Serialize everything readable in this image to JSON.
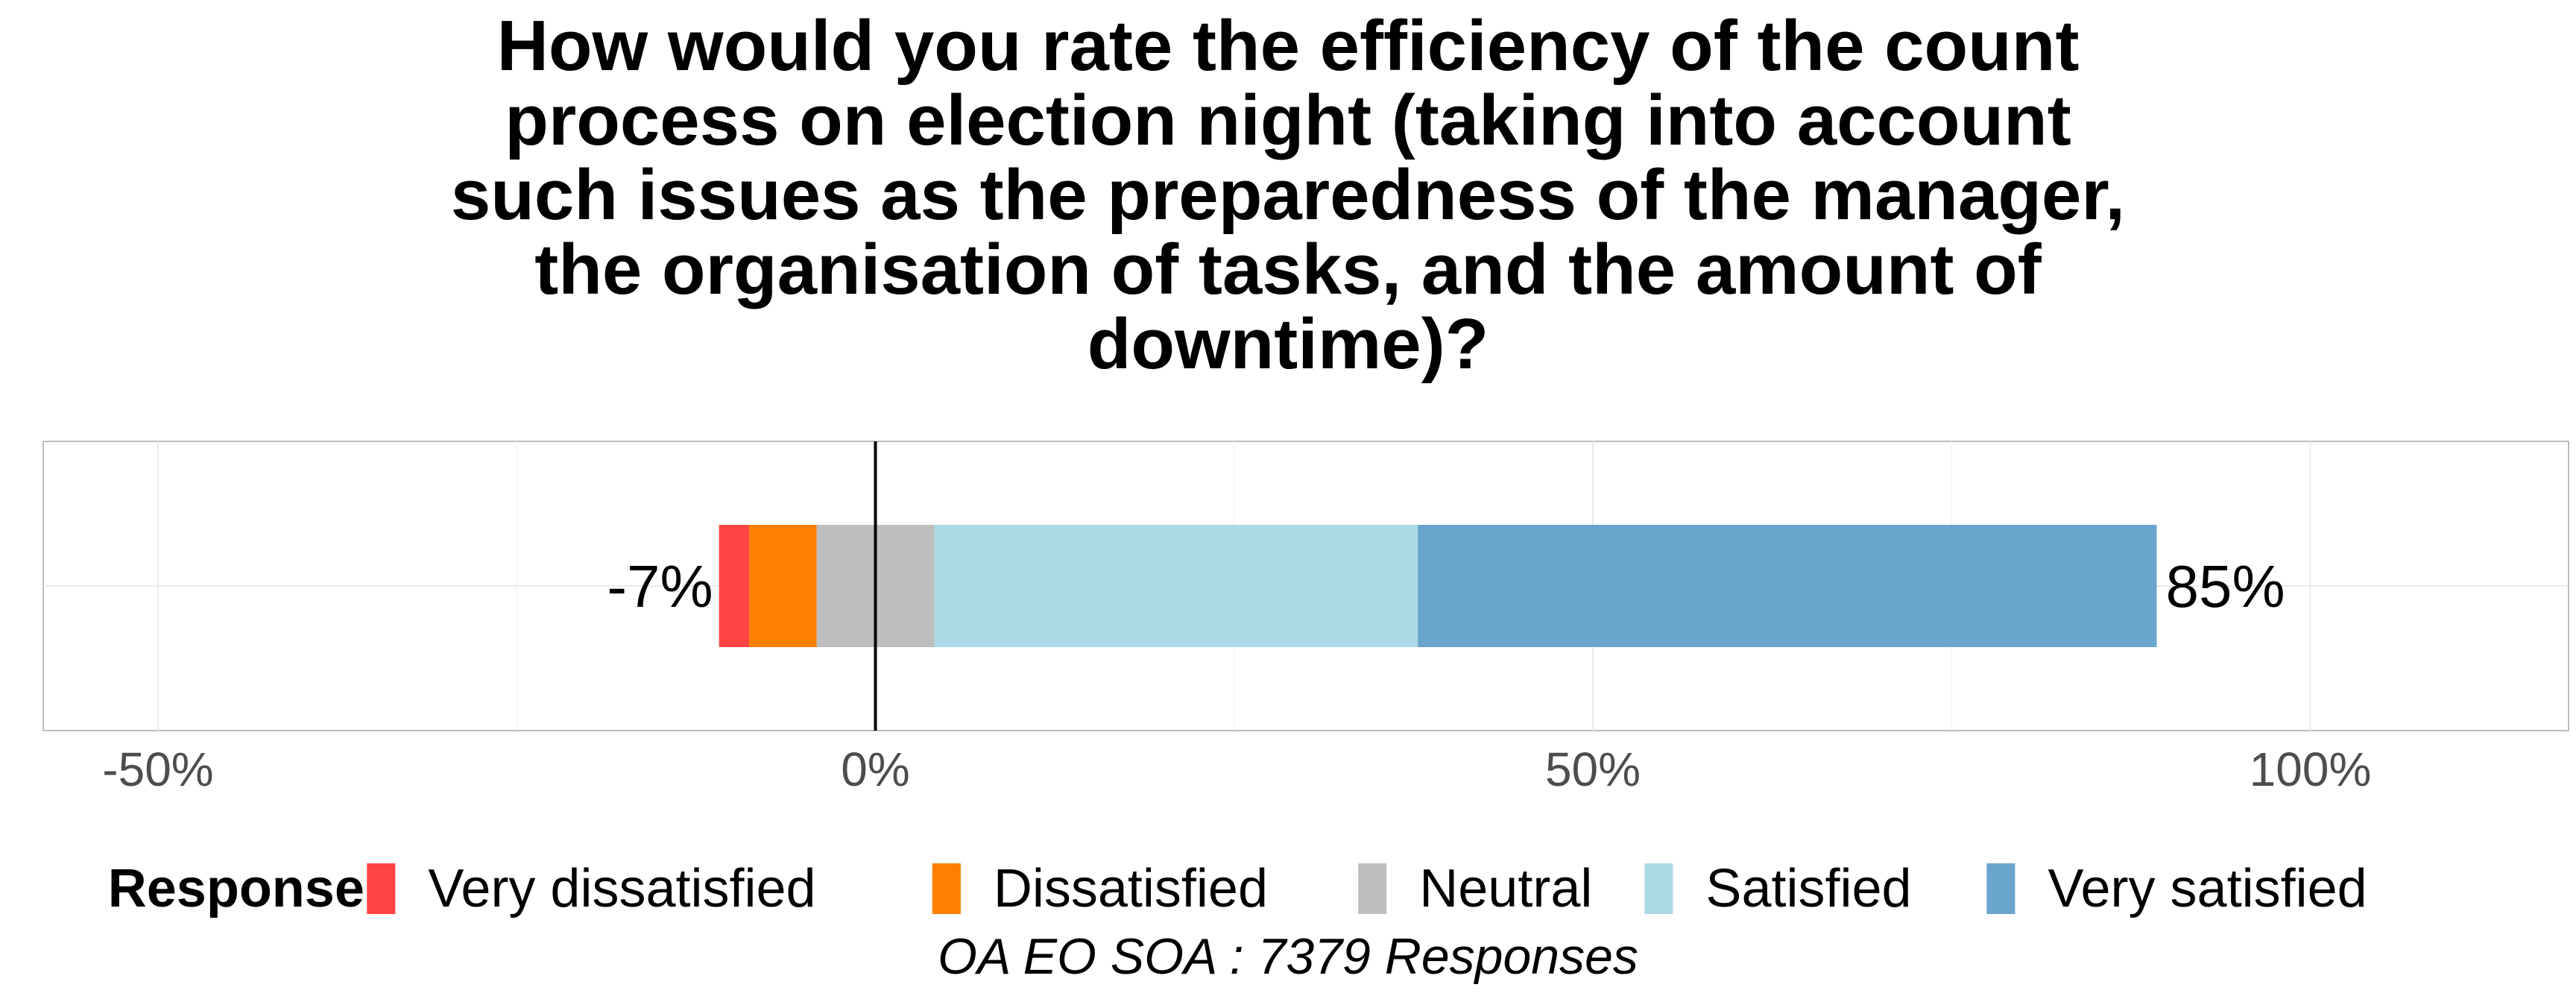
{
  "chart_data": {
    "type": "bar",
    "orientation": "horizontal",
    "stacked": true,
    "diverging": true,
    "title_lines": [
      "How would you rate the efficiency of the count",
      "process on election night (taking into account",
      "such issues as the preparedness of the manager,",
      "the organisation of tasks, and the amount of",
      "downtime)?"
    ],
    "xlim": [
      -58,
      118
    ],
    "x_ticks": [
      -50,
      0,
      50,
      100
    ],
    "x_tick_labels": [
      "-50%",
      "0%",
      "50%",
      "100%"
    ],
    "grid": true,
    "legend_title": "Response",
    "legend_position": "bottom",
    "series": [
      {
        "name": "Very dissatisfied",
        "start": -10.9,
        "end": -8.8,
        "color": "#ff4444"
      },
      {
        "name": "Dissatisfied",
        "start": -8.8,
        "end": -4.1,
        "color": "#ff7f00"
      },
      {
        "name": "Neutral",
        "start": -4.1,
        "end": 4.1,
        "color": "#bebebe"
      },
      {
        "name": "Satisfied",
        "start": 4.1,
        "end": 37.8,
        "color": "#add8e6"
      },
      {
        "name": "Very satisfied",
        "start": 37.8,
        "end": 89.3,
        "color": "#6aa5cd"
      }
    ],
    "labels": {
      "negative": "-7%",
      "positive": "85%"
    },
    "caption": "OA EO SOA : 7379 Responses"
  }
}
